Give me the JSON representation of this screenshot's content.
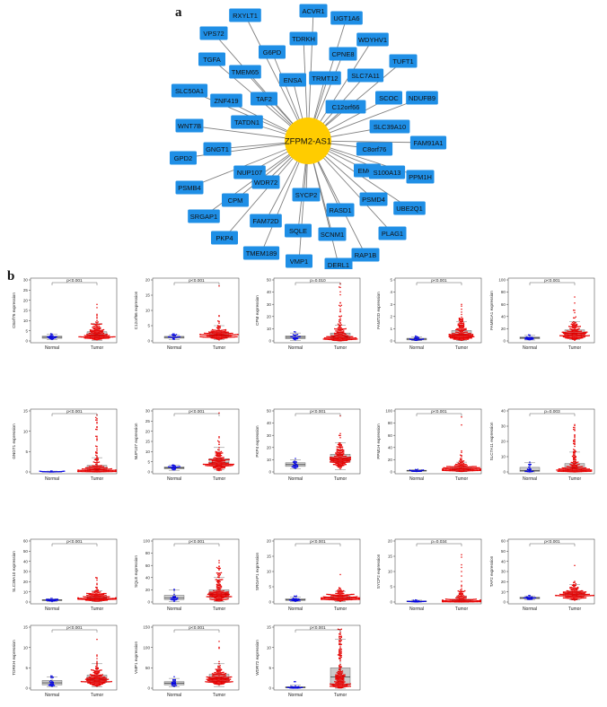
{
  "figure": {
    "panel_a_label": "a",
    "panel_b_label": "b",
    "colors": {
      "hub": "#FFCC00",
      "node": "#1F8FE6",
      "edge": "#808080",
      "normal": "#0000E6",
      "tumor": "#E60000",
      "box": "#9E9E9E"
    }
  },
  "network": {
    "hub": "ZFPM2-AS1",
    "nodes": [
      "ACVR1",
      "RXYLT1",
      "UGT1A6",
      "VPS72",
      "TDRKH",
      "WDYHV1",
      "G6PD",
      "CPNE8",
      "TGFA",
      "TMEM65",
      "TUFT1",
      "SLC7A11",
      "ENSA",
      "TRMT12",
      "SLC50A1",
      "TAF2",
      "ZNF419",
      "SCOC",
      "NDUFB9",
      "C12orf66",
      "TATDN1",
      "WNT7B",
      "SLC39A10",
      "C8orf76",
      "FAM91A1",
      "GNGT1",
      "GPD2",
      "NUP107",
      "EMC2",
      "S100A13",
      "PPM1H",
      "WDR72",
      "PSMB4",
      "CPM",
      "SYCP2",
      "PSMD4",
      "UBE2Q1",
      "SRGAP1",
      "RASD1",
      "FAM72D",
      "PLAG1",
      "SQLE",
      "PKP4",
      "SCNM1",
      "TMEM189",
      "RAP1B",
      "VMP1",
      "DERL1"
    ]
  },
  "chart_data": [
    {
      "type": "scatter",
      "gene": "C8orf76",
      "ylabel": "C8orf76 expression",
      "categories": [
        "Normal",
        "Tumor"
      ],
      "pvalue": "p<0.001",
      "ylim": [
        0,
        30
      ],
      "yticks": [
        0,
        5,
        10,
        15,
        20,
        25,
        30
      ],
      "normal": {
        "median": 1.8,
        "q1": 1.3,
        "q3": 2.4,
        "min": 0.6,
        "max": 3.2,
        "outlier_max": 3.6
      },
      "tumor": {
        "median": 3.0,
        "q1": 1.8,
        "q3": 4.5,
        "min": 0.3,
        "max": 8.5,
        "outlier_max": 18.0
      }
    },
    {
      "type": "scatter",
      "gene": "C12orf66",
      "ylabel": "C12orf66 expression",
      "categories": [
        "Normal",
        "Tumor"
      ],
      "pvalue": "p<0.001",
      "ylim": [
        0,
        20
      ],
      "yticks": [
        0,
        5,
        10,
        15,
        20
      ],
      "normal": {
        "median": 1.2,
        "q1": 0.9,
        "q3": 1.5,
        "min": 0.5,
        "max": 2.0,
        "outlier_max": 2.3
      },
      "tumor": {
        "median": 2.0,
        "q1": 1.4,
        "q3": 2.8,
        "min": 0.4,
        "max": 5.0,
        "outlier_max": 18.0
      }
    },
    {
      "type": "scatter",
      "gene": "CPM",
      "ylabel": "CPM expression",
      "categories": [
        "Normal",
        "Tumor"
      ],
      "pvalue": "p=0.010",
      "ylim": [
        0,
        50
      ],
      "yticks": [
        0,
        10,
        20,
        30,
        40,
        50
      ],
      "normal": {
        "median": 3.0,
        "q1": 1.8,
        "q3": 4.2,
        "min": 0.5,
        "max": 6.5,
        "outlier_max": 7.5
      },
      "tumor": {
        "median": 3.5,
        "q1": 1.5,
        "q3": 6.5,
        "min": 0.2,
        "max": 13.0,
        "outlier_max": 47.0
      }
    },
    {
      "type": "scatter",
      "gene": "FAM72D",
      "ylabel": "FAM72D expression",
      "categories": [
        "Normal",
        "Tumor"
      ],
      "pvalue": "p<0.001",
      "ylim": [
        0,
        5
      ],
      "yticks": [
        0,
        1,
        2,
        3,
        4,
        5
      ],
      "normal": {
        "median": 0.15,
        "q1": 0.08,
        "q3": 0.22,
        "min": 0.02,
        "max": 0.35,
        "outlier_max": 0.4
      },
      "tumor": {
        "median": 0.5,
        "q1": 0.28,
        "q3": 0.85,
        "min": 0.02,
        "max": 1.6,
        "outlier_max": 3.0
      }
    },
    {
      "type": "scatter",
      "gene": "FAM91A1",
      "ylabel": "FAM91A1 expression",
      "categories": [
        "Normal",
        "Tumor"
      ],
      "pvalue": "p<0.001",
      "ylim": [
        0,
        100
      ],
      "yticks": [
        0,
        20,
        40,
        60,
        80,
        100
      ],
      "normal": {
        "median": 5.0,
        "q1": 3.5,
        "q3": 6.5,
        "min": 1.5,
        "max": 9.0,
        "outlier_max": 10.0
      },
      "tumor": {
        "median": 12.0,
        "q1": 8.0,
        "q3": 18.0,
        "min": 2.0,
        "max": 32.0,
        "outlier_max": 72.0
      }
    },
    {
      "type": "scatter",
      "gene": "GNGT1",
      "ylabel": "GNGT1 expression",
      "categories": [
        "Normal",
        "Tumor"
      ],
      "pvalue": "p<0.001",
      "ylim": [
        0,
        15
      ],
      "yticks": [
        0,
        5,
        10,
        15
      ],
      "normal": {
        "median": 0.05,
        "q1": 0.02,
        "q3": 0.1,
        "min": 0.0,
        "max": 0.2,
        "outlier_max": 0.25
      },
      "tumor": {
        "median": 0.6,
        "q1": 0.15,
        "q3": 1.6,
        "min": 0.0,
        "max": 3.5,
        "outlier_max": 14.0
      }
    },
    {
      "type": "scatter",
      "gene": "NUP107",
      "ylabel": "NUP107 expression",
      "categories": [
        "Normal",
        "Tumor"
      ],
      "pvalue": "p<0.001",
      "ylim": [
        0,
        30
      ],
      "yticks": [
        0,
        5,
        10,
        15,
        20,
        25,
        30
      ],
      "normal": {
        "median": 2.0,
        "q1": 1.5,
        "q3": 2.5,
        "min": 0.8,
        "max": 3.2,
        "outlier_max": 3.5
      },
      "tumor": {
        "median": 4.5,
        "q1": 3.0,
        "q3": 6.5,
        "min": 1.0,
        "max": 12.0,
        "outlier_max": 29.0
      }
    },
    {
      "type": "scatter",
      "gene": "PKP4",
      "ylabel": "PKP4 expression",
      "categories": [
        "Normal",
        "Tumor"
      ],
      "pvalue": "p<0.001",
      "ylim": [
        0,
        50
      ],
      "yticks": [
        0,
        10,
        20,
        30,
        40,
        50
      ],
      "normal": {
        "median": 6.0,
        "q1": 4.5,
        "q3": 7.5,
        "min": 2.5,
        "max": 10.0,
        "outlier_max": 11.0
      },
      "tumor": {
        "median": 11.0,
        "q1": 8.0,
        "q3": 14.5,
        "min": 2.0,
        "max": 24.0,
        "outlier_max": 46.0
      }
    },
    {
      "type": "scatter",
      "gene": "PPM1H",
      "ylabel": "PPM1H expression",
      "categories": [
        "Normal",
        "Tumor"
      ],
      "pvalue": "p<0.001",
      "ylim": [
        0,
        100
      ],
      "yticks": [
        0,
        20,
        40,
        60,
        80,
        100
      ],
      "normal": {
        "median": 2.0,
        "q1": 1.2,
        "q3": 2.8,
        "min": 0.4,
        "max": 4.0,
        "outlier_max": 4.5
      },
      "tumor": {
        "median": 5.0,
        "q1": 2.8,
        "q3": 8.0,
        "min": 0.3,
        "max": 16.0,
        "outlier_max": 90.0
      }
    },
    {
      "type": "scatter",
      "gene": "SLC7A11",
      "ylabel": "SLC7A11 expression",
      "categories": [
        "Normal",
        "Tumor"
      ],
      "pvalue": "p=0.003",
      "ylim": [
        0,
        40
      ],
      "yticks": [
        0,
        10,
        20,
        30,
        40
      ],
      "normal": {
        "median": 1.0,
        "q1": 0.3,
        "q3": 3.0,
        "min": 0.0,
        "max": 6.0,
        "outlier_max": 6.5
      },
      "tumor": {
        "median": 2.5,
        "q1": 0.8,
        "q3": 5.5,
        "min": 0.0,
        "max": 13.0,
        "outlier_max": 31.0
      }
    },
    {
      "type": "scatter",
      "gene": "SLC39A10",
      "ylabel": "SLC39A10 expression",
      "categories": [
        "Normal",
        "Tumor"
      ],
      "pvalue": "p<0.001",
      "ylim": [
        0,
        60
      ],
      "yticks": [
        0,
        10,
        20,
        30,
        40,
        50,
        60
      ],
      "normal": {
        "median": 1.8,
        "q1": 1.3,
        "q3": 2.4,
        "min": 0.6,
        "max": 3.2,
        "outlier_max": 3.5
      },
      "tumor": {
        "median": 4.0,
        "q1": 2.5,
        "q3": 6.0,
        "min": 0.5,
        "max": 11.0,
        "outlier_max": 24.0
      }
    },
    {
      "type": "scatter",
      "gene": "SQLE",
      "ylabel": "SQLE expression",
      "categories": [
        "Normal",
        "Tumor"
      ],
      "pvalue": "p<0.001",
      "ylim": [
        0,
        100
      ],
      "yticks": [
        0,
        20,
        40,
        60,
        80,
        100
      ],
      "normal": {
        "median": 7.0,
        "q1": 4.0,
        "q3": 11.0,
        "min": 1.0,
        "max": 20.0,
        "outlier_max": 21.0
      },
      "tumor": {
        "median": 13.0,
        "q1": 7.0,
        "q3": 20.0,
        "min": 1.0,
        "max": 40.0,
        "outlier_max": 68.0
      }
    },
    {
      "type": "scatter",
      "gene": "SRGAP1",
      "ylabel": "SRGAP1 expression",
      "categories": [
        "Normal",
        "Tumor"
      ],
      "pvalue": "p<0.001",
      "ylim": [
        0,
        20
      ],
      "yticks": [
        0,
        5,
        10,
        15,
        20
      ],
      "normal": {
        "median": 0.8,
        "q1": 0.5,
        "q3": 1.1,
        "min": 0.2,
        "max": 1.7,
        "outlier_max": 2.0
      },
      "tumor": {
        "median": 1.4,
        "q1": 0.9,
        "q3": 2.0,
        "min": 0.2,
        "max": 3.5,
        "outlier_max": 9.0
      }
    },
    {
      "type": "scatter",
      "gene": "SYCP2",
      "ylabel": "SYCP2 expression",
      "categories": [
        "Normal",
        "Tumor"
      ],
      "pvalue": "p=0.034",
      "ylim": [
        0,
        20
      ],
      "yticks": [
        0,
        5,
        10,
        15,
        20
      ],
      "normal": {
        "median": 0.2,
        "q1": 0.1,
        "q3": 0.35,
        "min": 0.0,
        "max": 0.6,
        "outlier_max": 0.7
      },
      "tumor": {
        "median": 0.4,
        "q1": 0.15,
        "q3": 0.9,
        "min": 0.0,
        "max": 2.0,
        "outlier_max": 15.5
      }
    },
    {
      "type": "scatter",
      "gene": "TAF2",
      "ylabel": "TAF2 expression",
      "categories": [
        "Normal",
        "Tumor"
      ],
      "pvalue": "p<0.001",
      "ylim": [
        0,
        60
      ],
      "yticks": [
        0,
        10,
        20,
        30,
        40,
        50,
        60
      ],
      "normal": {
        "median": 4.0,
        "q1": 3.2,
        "q3": 4.8,
        "min": 2.2,
        "max": 6.0,
        "outlier_max": 6.5
      },
      "tumor": {
        "median": 7.5,
        "q1": 5.5,
        "q3": 10.0,
        "min": 2.0,
        "max": 17.0,
        "outlier_max": 36.0
      }
    },
    {
      "type": "scatter",
      "gene": "TDRKH",
      "ylabel": "TDRKH expression",
      "categories": [
        "Normal",
        "Tumor"
      ],
      "pvalue": "p<0.001",
      "ylim": [
        0,
        15
      ],
      "yticks": [
        0,
        5,
        10,
        15
      ],
      "normal": {
        "median": 1.3,
        "q1": 0.8,
        "q3": 1.9,
        "min": 0.3,
        "max": 2.8,
        "outlier_max": 3.0
      },
      "tumor": {
        "median": 2.2,
        "q1": 1.4,
        "q3": 3.2,
        "min": 0.3,
        "max": 6.0,
        "outlier_max": 12.0
      }
    },
    {
      "type": "scatter",
      "gene": "VMP1",
      "ylabel": "VMP1 expression",
      "categories": [
        "Normal",
        "Tumor"
      ],
      "pvalue": "p<0.001",
      "ylim": [
        0,
        150
      ],
      "yticks": [
        0,
        50,
        100,
        150
      ],
      "normal": {
        "median": 12.0,
        "q1": 8.0,
        "q3": 16.0,
        "min": 3.0,
        "max": 24.0,
        "outlier_max": 28.0
      },
      "tumor": {
        "median": 24.0,
        "q1": 16.0,
        "q3": 34.0,
        "min": 4.0,
        "max": 60.0,
        "outlier_max": 115.0
      }
    },
    {
      "type": "scatter",
      "gene": "WDR72",
      "ylabel": "WDR72 expression",
      "categories": [
        "Normal",
        "Tumor"
      ],
      "pvalue": "p<0.001",
      "ylim": [
        0,
        15
      ],
      "yticks": [
        0,
        5,
        10,
        15
      ],
      "normal": {
        "median": 0.2,
        "q1": 0.05,
        "q3": 0.35,
        "min": 0.0,
        "max": 0.7,
        "outlier_max": 1.6
      },
      "tumor": {
        "median": 2.8,
        "q1": 0.8,
        "q3": 5.0,
        "min": 0.0,
        "max": 12.0,
        "outlier_max": 14.5
      }
    }
  ]
}
